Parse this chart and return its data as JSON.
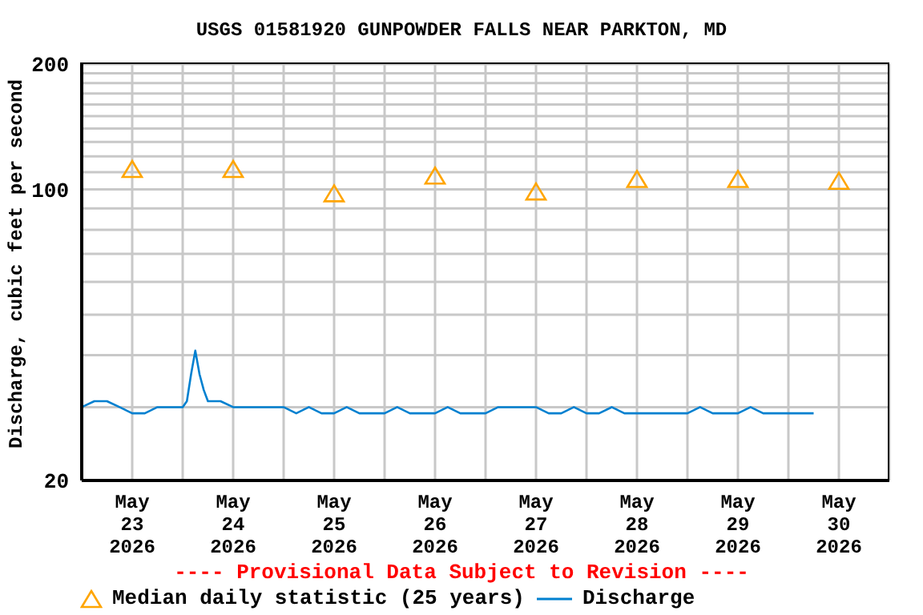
{
  "chart_data": {
    "type": "line",
    "title": "USGS 01581920 GUNPOWDER FALLS NEAR PARKTON, MD",
    "ylabel": "Discharge, cubic feet per second",
    "annotations": [
      "---- Provisional Data Subject to Revision ----"
    ],
    "log": "y",
    "grid": true,
    "legend": "bottom",
    "xlim": [
      "2026-05-23T00:00",
      "2026-05-31T00:00"
    ],
    "xticks": [
      {
        "value": "2026-05-23T00:00",
        "label": null
      },
      {
        "value": "2026-05-23T12:00",
        "label": "May 23 2026"
      },
      {
        "value": "2026-05-24T00:00",
        "label": null
      },
      {
        "value": "2026-05-24T12:00",
        "label": "May 24 2026"
      },
      {
        "value": "2026-05-25T00:00",
        "label": null
      },
      {
        "value": "2026-05-25T12:00",
        "label": "May 25 2026"
      },
      {
        "value": "2026-05-26T00:00",
        "label": null
      },
      {
        "value": "2026-05-26T12:00",
        "label": "May 26 2026"
      },
      {
        "value": "2026-05-27T00:00",
        "label": null
      },
      {
        "value": "2026-05-27T12:00",
        "label": "May 27 2026"
      },
      {
        "value": "2026-05-28T00:00",
        "label": null
      },
      {
        "value": "2026-05-28T12:00",
        "label": "May 28 2026"
      },
      {
        "value": "2026-05-29T00:00",
        "label": null
      },
      {
        "value": "2026-05-29T12:00",
        "label": "May 29 2026"
      },
      {
        "value": "2026-05-30T00:00",
        "label": null
      },
      {
        "value": "2026-05-30T12:00",
        "label": "May 30 2026"
      },
      {
        "value": "2026-05-31T00:00",
        "label": null
      }
    ],
    "ylim": [
      20,
      200
    ],
    "yticks": [
      20,
      {
        "value": 30,
        "label": null
      },
      {
        "value": 40,
        "label": null
      },
      {
        "value": 50,
        "label": null
      },
      {
        "value": 60,
        "label": null
      },
      {
        "value": 70,
        "label": null
      },
      {
        "value": 80,
        "label": null
      },
      {
        "value": 90,
        "label": null
      },
      100,
      {
        "value": 110,
        "label": null
      },
      {
        "value": 120,
        "label": null
      },
      {
        "value": 130,
        "label": null
      },
      {
        "value": 140,
        "label": null
      },
      {
        "value": 150,
        "label": null
      },
      {
        "value": 160,
        "label": null
      },
      {
        "value": 170,
        "label": null
      },
      {
        "value": 180,
        "label": null
      },
      {
        "value": 190,
        "label": null
      },
      200
    ],
    "series": [
      {
        "name": "Median daily statistic (25 years)",
        "type": "scatter",
        "marker": "triangle",
        "color": "#ffa500",
        "x": [
          "2026-05-23T12:00",
          "2026-05-24T12:00",
          "2026-05-25T12:00",
          "2026-05-26T12:00",
          "2026-05-27T12:00",
          "2026-05-28T12:00",
          "2026-05-29T12:00",
          "2026-05-30T12:00"
        ],
        "values": [
          111,
          111,
          97,
          107,
          98,
          105,
          105,
          104
        ]
      },
      {
        "name": "Discharge",
        "marker": "none",
        "line_style": "solid",
        "color": "#0080d0",
        "x": [
          "2026-05-23T00:00",
          "2026-05-23T03:00",
          "2026-05-23T06:00",
          "2026-05-23T09:00",
          "2026-05-23T12:00",
          "2026-05-23T15:00",
          "2026-05-23T18:00",
          "2026-05-23T21:00",
          "2026-05-24T00:00",
          "2026-05-24T01:00",
          "2026-05-24T02:00",
          "2026-05-24T03:00",
          "2026-05-24T04:00",
          "2026-05-24T05:00",
          "2026-05-24T06:00",
          "2026-05-24T09:00",
          "2026-05-24T12:00",
          "2026-05-24T15:00",
          "2026-05-24T18:00",
          "2026-05-24T21:00",
          "2026-05-25T00:00",
          "2026-05-25T03:00",
          "2026-05-25T06:00",
          "2026-05-25T09:00",
          "2026-05-25T12:00",
          "2026-05-25T15:00",
          "2026-05-25T18:00",
          "2026-05-25T21:00",
          "2026-05-26T00:00",
          "2026-05-26T03:00",
          "2026-05-26T06:00",
          "2026-05-26T09:00",
          "2026-05-26T12:00",
          "2026-05-26T15:00",
          "2026-05-26T18:00",
          "2026-05-26T21:00",
          "2026-05-27T00:00",
          "2026-05-27T03:00",
          "2026-05-27T06:00",
          "2026-05-27T09:00",
          "2026-05-27T12:00",
          "2026-05-27T15:00",
          "2026-05-27T18:00",
          "2026-05-27T21:00",
          "2026-05-28T00:00",
          "2026-05-28T03:00",
          "2026-05-28T06:00",
          "2026-05-28T09:00",
          "2026-05-28T12:00",
          "2026-05-28T15:00",
          "2026-05-28T18:00",
          "2026-05-28T21:00",
          "2026-05-29T00:00",
          "2026-05-29T03:00",
          "2026-05-29T06:00",
          "2026-05-29T09:00",
          "2026-05-29T12:00",
          "2026-05-29T15:00",
          "2026-05-29T18:00",
          "2026-05-29T21:00",
          "2026-05-30T00:00",
          "2026-05-30T03:00",
          "2026-05-30T06:00"
        ],
        "values": [
          30,
          31,
          31,
          30,
          29,
          29,
          30,
          30,
          30,
          31,
          36,
          41,
          36,
          33,
          31,
          31,
          30,
          30,
          30,
          30,
          30,
          29,
          30,
          29,
          29,
          30,
          29,
          29,
          29,
          30,
          29,
          29,
          29,
          30,
          29,
          29,
          29,
          30,
          30,
          30,
          30,
          29,
          29,
          30,
          29,
          29,
          30,
          29,
          29,
          29,
          29,
          29,
          29,
          30,
          29,
          29,
          29,
          30,
          29,
          29,
          29,
          29,
          29
        ]
      }
    ]
  }
}
